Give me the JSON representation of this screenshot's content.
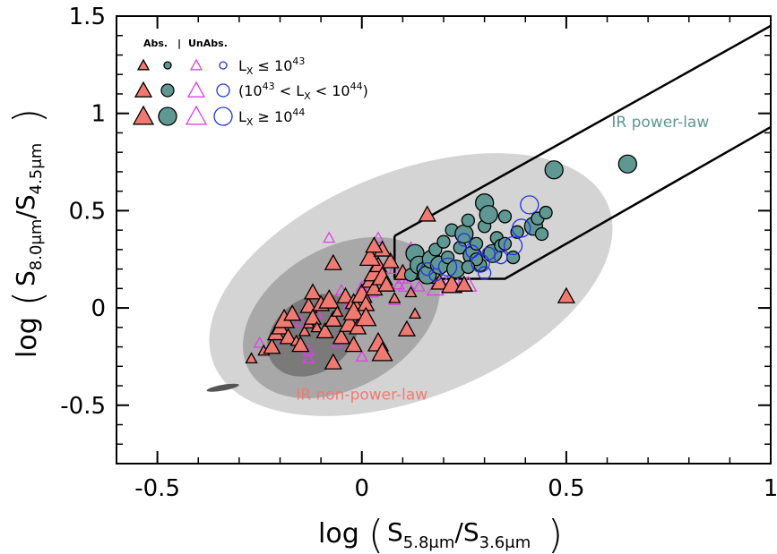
{
  "chart_data": {
    "type": "scatter",
    "title": "",
    "xlabel": {
      "prefix": "log",
      "main": "S",
      "sub1": "5.8μm",
      "slash": "/S",
      "sub2": "3.6μm"
    },
    "ylabel": {
      "prefix": "log",
      "main": "S",
      "sub1": "8.0μm",
      "slash": "/S",
      "sub2": "4.5μm"
    },
    "xlim": [
      -0.6,
      1.0
    ],
    "ylim": [
      -0.8,
      1.5
    ],
    "xticks": [
      -0.5,
      0,
      0.5,
      1
    ],
    "xtick_labels": [
      "-0.5",
      "0",
      "0.5",
      "1"
    ],
    "yticks": [
      -0.5,
      0,
      0.5,
      1,
      1.5
    ],
    "ytick_labels": [
      "-0.5",
      "0",
      "0.5",
      "1",
      "1.5"
    ],
    "grid": false,
    "colors": {
      "abs_low": "#f07a72",
      "abs_high": "#5f9893",
      "unabs_low": "#e040e8",
      "unabs_high": "#2233dd",
      "contour_light": "#d4d4d4",
      "contour_mid": "#a8a8a8",
      "contour_dark": "#7a7a7a",
      "contour_darkest": "#555555"
    },
    "legend": {
      "position": "top-left",
      "header_abs": "Abs.",
      "header_sep": "|",
      "header_unabs": "UnAbs.",
      "rows": [
        {
          "size": "small",
          "label_main": "L",
          "label_sub": "X",
          "label_rest": " ≤ 10",
          "label_sup": "43"
        },
        {
          "size": "medium",
          "label_main": "(10",
          "label_sup1": "43",
          "label_mid": " < L",
          "label_sub": "X",
          "label_rest": " < 10",
          "label_sup": "44",
          "label_end": ")"
        },
        {
          "size": "large",
          "label_main": "L",
          "label_sub": "X",
          "label_rest": " ≥ 10",
          "label_sup": "44"
        }
      ]
    },
    "annotations": [
      {
        "text": "IR power-law",
        "x": 0.73,
        "y": 0.93,
        "color": "#5f9893"
      },
      {
        "text": "IR non-power-law",
        "x": 0.0,
        "y": -0.47,
        "color": "#f07a72"
      }
    ],
    "wedge": {
      "upper": [
        [
          0.08,
          0.37
        ],
        [
          1.0,
          1.45
        ]
      ],
      "lower": [
        [
          0.08,
          0.15
        ],
        [
          0.35,
          0.15
        ],
        [
          1.0,
          0.93
        ]
      ]
    },
    "series": [
      {
        "name": "Abs. non-power-law",
        "marker": "triangle",
        "points": [
          {
            "x": -0.27,
            "y": -0.26,
            "s": 1
          },
          {
            "x": -0.24,
            "y": -0.22,
            "s": 1
          },
          {
            "x": -0.22,
            "y": -0.2,
            "s": 2
          },
          {
            "x": -0.21,
            "y": -0.13,
            "s": 2
          },
          {
            "x": -0.2,
            "y": -0.1,
            "s": 2
          },
          {
            "x": -0.19,
            "y": -0.06,
            "s": 3
          },
          {
            "x": -0.18,
            "y": -0.15,
            "s": 2
          },
          {
            "x": -0.17,
            "y": -0.03,
            "s": 2
          },
          {
            "x": -0.16,
            "y": -0.17,
            "s": 1
          },
          {
            "x": -0.15,
            "y": -0.19,
            "s": 2
          },
          {
            "x": -0.14,
            "y": -0.12,
            "s": 1
          },
          {
            "x": -0.13,
            "y": -0.08,
            "s": 1
          },
          {
            "x": -0.13,
            "y": 0.01,
            "s": 2
          },
          {
            "x": -0.12,
            "y": -0.05,
            "s": 2
          },
          {
            "x": -0.12,
            "y": 0.08,
            "s": 2
          },
          {
            "x": -0.11,
            "y": -0.1,
            "s": 1
          },
          {
            "x": -0.1,
            "y": 0.02,
            "s": 2
          },
          {
            "x": -0.09,
            "y": -0.12,
            "s": 2
          },
          {
            "x": -0.08,
            "y": 0.04,
            "s": 3
          },
          {
            "x": -0.07,
            "y": -0.06,
            "s": 2
          },
          {
            "x": -0.06,
            "y": -0.02,
            "s": 1
          },
          {
            "x": -0.05,
            "y": -0.15,
            "s": 2
          },
          {
            "x": -0.04,
            "y": 0.06,
            "s": 2
          },
          {
            "x": -0.03,
            "y": -0.08,
            "s": 3
          },
          {
            "x": -0.02,
            "y": 0.03,
            "s": 2
          },
          {
            "x": -0.02,
            "y": -0.02,
            "s": 3
          },
          {
            "x": -0.01,
            "y": -0.1,
            "s": 2
          },
          {
            "x": 0.0,
            "y": 0.07,
            "s": 3
          },
          {
            "x": 0.01,
            "y": 0.02,
            "s": 2
          },
          {
            "x": 0.01,
            "y": -0.05,
            "s": 3
          },
          {
            "x": 0.02,
            "y": 0.14,
            "s": 2
          },
          {
            "x": 0.03,
            "y": 0.18,
            "s": 3
          },
          {
            "x": 0.03,
            "y": 0.1,
            "s": 2
          },
          {
            "x": 0.04,
            "y": 0.22,
            "s": 2
          },
          {
            "x": 0.05,
            "y": 0.16,
            "s": 3
          },
          {
            "x": 0.06,
            "y": 0.12,
            "s": 2
          },
          {
            "x": 0.07,
            "y": 0.24,
            "s": 2
          },
          {
            "x": 0.08,
            "y": 0.05,
            "s": 1
          },
          {
            "x": 0.1,
            "y": 0.18,
            "s": 2
          },
          {
            "x": 0.12,
            "y": 0.08,
            "s": 1
          },
          {
            "x": -0.07,
            "y": -0.28,
            "s": 2
          },
          {
            "x": -0.02,
            "y": -0.19,
            "s": 2
          },
          {
            "x": 0.04,
            "y": -0.18,
            "s": 3
          },
          {
            "x": 0.05,
            "y": -0.23,
            "s": 3
          },
          {
            "x": 0.11,
            "y": -0.11,
            "s": 2
          },
          {
            "x": 0.13,
            "y": -0.03,
            "s": 1
          },
          {
            "x": -0.07,
            "y": 0.23,
            "s": 2
          },
          {
            "x": 0.02,
            "y": 0.26,
            "s": 3
          },
          {
            "x": 0.16,
            "y": 0.48,
            "s": 2
          },
          {
            "x": 0.17,
            "y": 0.16,
            "s": 2
          },
          {
            "x": 0.19,
            "y": 0.13,
            "s": 2
          },
          {
            "x": 0.22,
            "y": 0.12,
            "s": 3
          },
          {
            "x": 0.25,
            "y": 0.12,
            "s": 2
          },
          {
            "x": 0.5,
            "y": 0.06,
            "s": 2
          },
          {
            "x": 0.05,
            "y": 0.3,
            "s": 2
          },
          {
            "x": 0.03,
            "y": 0.32,
            "s": 2
          }
        ]
      },
      {
        "name": "UnAbs. non-power-law",
        "marker": "open-triangle",
        "points": [
          {
            "x": -0.25,
            "y": -0.18,
            "s": 1
          },
          {
            "x": -0.21,
            "y": -0.16,
            "s": 1
          },
          {
            "x": -0.15,
            "y": -0.07,
            "s": 1
          },
          {
            "x": -0.13,
            "y": -0.22,
            "s": 1
          },
          {
            "x": -0.11,
            "y": -0.03,
            "s": 1
          },
          {
            "x": -0.08,
            "y": 0.36,
            "s": 1
          },
          {
            "x": -0.05,
            "y": 0.09,
            "s": 1
          },
          {
            "x": -0.03,
            "y": 0.02,
            "s": 1
          },
          {
            "x": 0.0,
            "y": 0.11,
            "s": 1
          },
          {
            "x": 0.02,
            "y": 0.09,
            "s": 2
          },
          {
            "x": 0.04,
            "y": 0.36,
            "s": 1
          },
          {
            "x": 0.05,
            "y": 0.2,
            "s": 1
          },
          {
            "x": 0.06,
            "y": 0.14,
            "s": 1
          },
          {
            "x": 0.08,
            "y": 0.2,
            "s": 1
          },
          {
            "x": 0.09,
            "y": 0.12,
            "s": 1
          },
          {
            "x": 0.1,
            "y": 0.15,
            "s": 1
          },
          {
            "x": 0.11,
            "y": 0.12,
            "s": 2
          },
          {
            "x": 0.12,
            "y": 0.31,
            "s": 1
          },
          {
            "x": 0.13,
            "y": 0.19,
            "s": 2
          },
          {
            "x": 0.14,
            "y": 0.11,
            "s": 1
          },
          {
            "x": 0.15,
            "y": 0.26,
            "s": 1
          },
          {
            "x": 0.16,
            "y": 0.17,
            "s": 1
          },
          {
            "x": 0.17,
            "y": 0.2,
            "s": 1
          },
          {
            "x": 0.18,
            "y": 0.1,
            "s": 2
          },
          {
            "x": 0.2,
            "y": 0.22,
            "s": 1
          },
          {
            "x": 0.22,
            "y": 0.16,
            "s": 2
          },
          {
            "x": 0.23,
            "y": 0.14,
            "s": 1
          },
          {
            "x": 0.26,
            "y": 0.12,
            "s": 2
          },
          {
            "x": -0.06,
            "y": -0.18,
            "s": 1
          },
          {
            "x": -0.13,
            "y": -0.26,
            "s": 1
          },
          {
            "x": 0.0,
            "y": -0.25,
            "s": 1
          },
          {
            "x": 0.08,
            "y": 0.04,
            "s": 1
          }
        ]
      },
      {
        "name": "Abs. power-law",
        "marker": "circle",
        "points": [
          {
            "x": 0.12,
            "y": 0.17,
            "s": 2
          },
          {
            "x": 0.13,
            "y": 0.28,
            "s": 3
          },
          {
            "x": 0.14,
            "y": 0.22,
            "s": 3
          },
          {
            "x": 0.15,
            "y": 0.2,
            "s": 2
          },
          {
            "x": 0.16,
            "y": 0.17,
            "s": 3
          },
          {
            "x": 0.17,
            "y": 0.25,
            "s": 3
          },
          {
            "x": 0.18,
            "y": 0.3,
            "s": 2
          },
          {
            "x": 0.19,
            "y": 0.22,
            "s": 3
          },
          {
            "x": 0.2,
            "y": 0.34,
            "s": 2
          },
          {
            "x": 0.21,
            "y": 0.26,
            "s": 2
          },
          {
            "x": 0.22,
            "y": 0.4,
            "s": 2
          },
          {
            "x": 0.23,
            "y": 0.2,
            "s": 3
          },
          {
            "x": 0.24,
            "y": 0.31,
            "s": 2
          },
          {
            "x": 0.25,
            "y": 0.38,
            "s": 3
          },
          {
            "x": 0.26,
            "y": 0.45,
            "s": 2
          },
          {
            "x": 0.27,
            "y": 0.27,
            "s": 3
          },
          {
            "x": 0.28,
            "y": 0.33,
            "s": 2
          },
          {
            "x": 0.29,
            "y": 0.22,
            "s": 2
          },
          {
            "x": 0.3,
            "y": 0.42,
            "s": 2
          },
          {
            "x": 0.3,
            "y": 0.54,
            "s": 3
          },
          {
            "x": 0.31,
            "y": 0.48,
            "s": 3
          },
          {
            "x": 0.32,
            "y": 0.28,
            "s": 3
          },
          {
            "x": 0.33,
            "y": 0.36,
            "s": 2
          },
          {
            "x": 0.34,
            "y": 0.32,
            "s": 2
          },
          {
            "x": 0.35,
            "y": 0.47,
            "s": 2
          },
          {
            "x": 0.37,
            "y": 0.26,
            "s": 2
          },
          {
            "x": 0.38,
            "y": 0.39,
            "s": 2
          },
          {
            "x": 0.42,
            "y": 0.42,
            "s": 3
          },
          {
            "x": 0.43,
            "y": 0.46,
            "s": 2
          },
          {
            "x": 0.44,
            "y": 0.38,
            "s": 2
          },
          {
            "x": 0.45,
            "y": 0.49,
            "s": 2
          },
          {
            "x": 0.47,
            "y": 0.71,
            "s": 3
          },
          {
            "x": 0.65,
            "y": 0.74,
            "s": 3
          },
          {
            "x": 0.28,
            "y": 0.25,
            "s": 2
          },
          {
            "x": 0.26,
            "y": 0.21,
            "s": 2
          },
          {
            "x": 0.35,
            "y": 0.33,
            "s": 2
          }
        ]
      },
      {
        "name": "UnAbs. power-law",
        "marker": "open-circle",
        "points": [
          {
            "x": 0.16,
            "y": 0.2,
            "s": 2
          },
          {
            "x": 0.18,
            "y": 0.17,
            "s": 2
          },
          {
            "x": 0.21,
            "y": 0.21,
            "s": 3
          },
          {
            "x": 0.25,
            "y": 0.35,
            "s": 2
          },
          {
            "x": 0.27,
            "y": 0.29,
            "s": 2
          },
          {
            "x": 0.29,
            "y": 0.23,
            "s": 3
          },
          {
            "x": 0.31,
            "y": 0.28,
            "s": 2
          },
          {
            "x": 0.34,
            "y": 0.26,
            "s": 2
          },
          {
            "x": 0.37,
            "y": 0.32,
            "s": 3
          },
          {
            "x": 0.39,
            "y": 0.41,
            "s": 3
          },
          {
            "x": 0.41,
            "y": 0.53,
            "s": 3
          },
          {
            "x": 0.3,
            "y": 0.18,
            "s": 2
          }
        ]
      }
    ]
  }
}
